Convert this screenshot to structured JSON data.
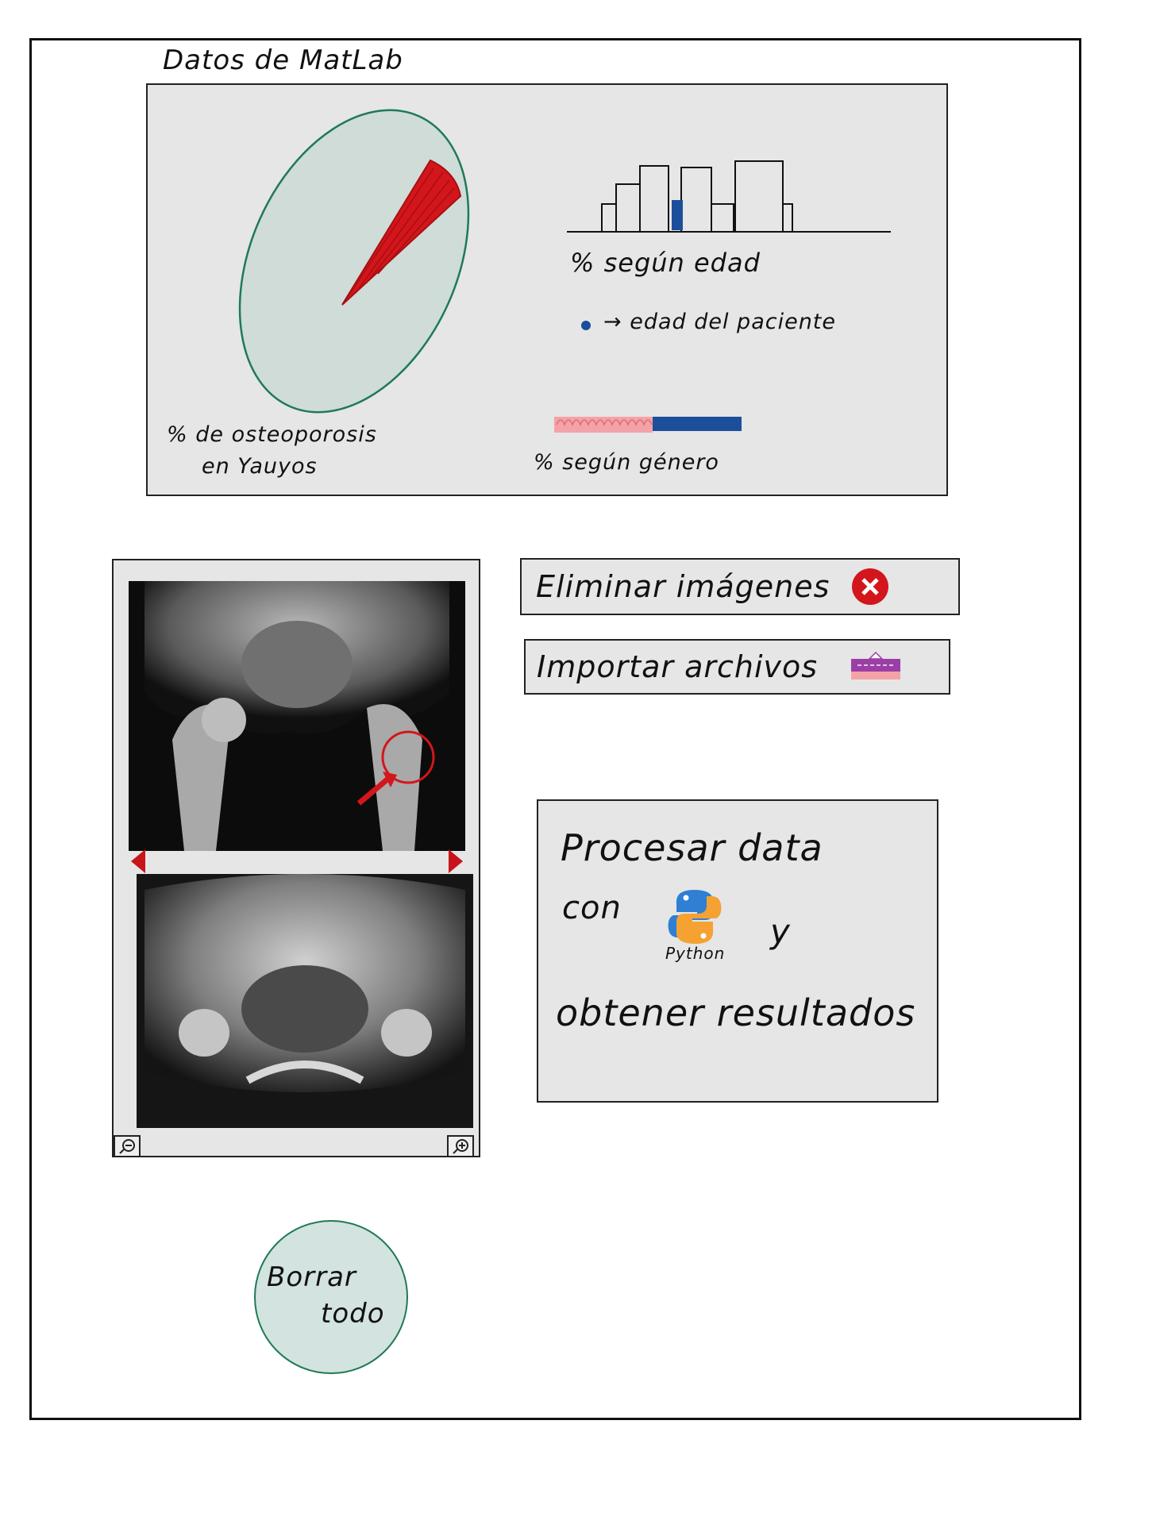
{
  "header": {
    "title": "Datos de MatLab"
  },
  "charts_panel": {
    "pie": {
      "label_line1": "% de osteoporosis",
      "label_line2": "en Yauyos",
      "colors": {
        "fill": "#cfdcd8",
        "stroke": "#1f7a55",
        "slice": "#d3161b"
      }
    },
    "age_histogram": {
      "label": "% según edad",
      "legend_text": "→ edad del paciente",
      "colors": {
        "bars": "#111111",
        "highlight": "#1b4f9c"
      }
    },
    "gender_bar": {
      "label": "% según género",
      "colors": {
        "female": "#f3a3a8",
        "male": "#1b4f9c"
      }
    }
  },
  "viewer": {
    "zoom_out_icon": "zoom-out-icon",
    "zoom_in_icon": "zoom-in-icon",
    "prev_icon": "arrow-left-icon",
    "next_icon": "arrow-right-icon"
  },
  "actions": {
    "delete_images": {
      "label": "Eliminar imágenes",
      "icon": "close-icon",
      "icon_color": "#d3161b"
    },
    "import_files": {
      "label": "Importar archivos",
      "icon": "upload-icon"
    },
    "process": {
      "line1": "Procesar data",
      "line2": "con",
      "python_label": "Python",
      "line2_tail": "y",
      "line3": "obtener resultados"
    },
    "clear_all": {
      "line1": "Borrar",
      "line2": "todo"
    }
  }
}
